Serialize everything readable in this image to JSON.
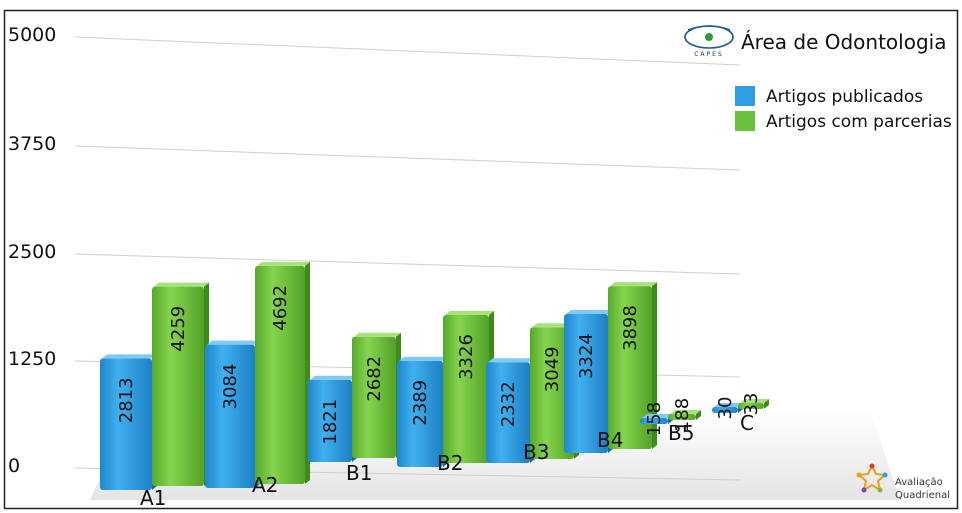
{
  "header": {
    "title": "Área de Odontologia",
    "logo_text": "CAPES",
    "badge_line1": "Avaliação",
    "badge_line2": "Quadrienal"
  },
  "colors": {
    "published": "#2e9ee3",
    "partnership": "#6cc13a"
  },
  "chart_data": {
    "type": "bar",
    "categories": [
      "A1",
      "A2",
      "B1",
      "B2",
      "B3",
      "B4",
      "B5",
      "C"
    ],
    "series": [
      {
        "name": "Artigos publicados",
        "values": [
          2813,
          3084,
          1821,
          2389,
          2332,
          3324,
          158,
          30
        ]
      },
      {
        "name": "Artigos com parcerias",
        "values": [
          4259,
          4692,
          2682,
          3326,
          3049,
          3898,
          188,
          33
        ]
      }
    ],
    "yticks": [
      0,
      1250,
      2500,
      3750,
      5000
    ],
    "ylim": [
      0,
      5000
    ],
    "grid": true,
    "legend": "top-right",
    "xlabel": "",
    "ylabel": ""
  }
}
